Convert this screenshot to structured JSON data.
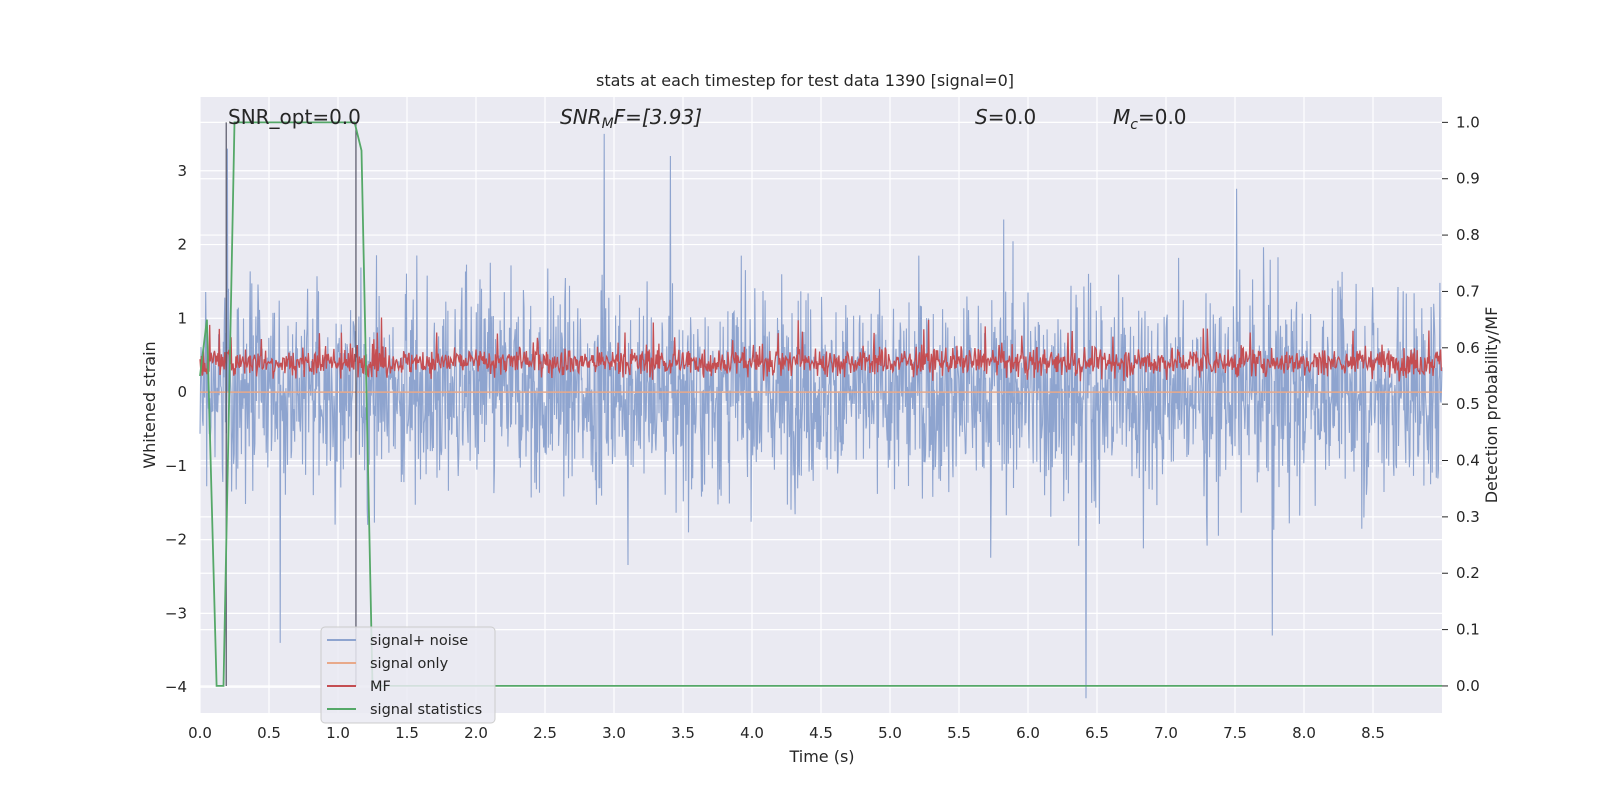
{
  "chart_data": {
    "type": "line",
    "title": "stats at each timestep for test data 1390 [signal=0]",
    "xlabel": "Time (s)",
    "ylabel": "Whitened strain",
    "y2label": "Detection probability/MF",
    "xlim": [
      0.0,
      9.0
    ],
    "ylim": [
      -4.35,
      4.0
    ],
    "y2lim": [
      -0.048,
      1.045
    ],
    "grid": true,
    "legend_placement": "lower-left",
    "x_ticks": [
      "0.0",
      "0.5",
      "1.0",
      "1.5",
      "2.0",
      "2.5",
      "3.0",
      "3.5",
      "4.0",
      "4.5",
      "5.0",
      "5.5",
      "6.0",
      "6.5",
      "7.0",
      "7.5",
      "8.0",
      "8.5"
    ],
    "y_ticks": [
      "3",
      "2",
      "1",
      "0",
      "−1",
      "−2",
      "−3",
      "−4"
    ],
    "y2_ticks": [
      "1.0",
      "0.9",
      "0.8",
      "0.7",
      "0.6",
      "0.5",
      "0.4",
      "0.3",
      "0.2",
      "0.1",
      "0.0"
    ],
    "annotations": {
      "snr_opt": "SNR_opt=0.0",
      "snr_mf_base": "SNR",
      "snr_mf_sub": "M",
      "snr_mf_rest": "F=[3.93]",
      "s_base": "S",
      "s_rest": "=0.0",
      "mc_base": "M",
      "mc_sub": "c",
      "mc_rest": "=0.0"
    },
    "series": [
      {
        "name": "signal+ noise",
        "color": "#8ea4cf",
        "axis": "left",
        "description_level": "whitened strain noise, envelope approx ±1.5 to ±2.0",
        "peaks": [
          [
            0.2,
            3.3
          ],
          [
            2.93,
            3.5
          ],
          [
            6.42,
            -4.15
          ],
          [
            0.58,
            -3.4
          ],
          [
            7.77,
            -3.3
          ]
        ]
      },
      {
        "name": "signal only",
        "color": "#e8a98a",
        "axis": "left",
        "values_x": [
          0.0,
          9.0
        ],
        "values_y": [
          0.0,
          0.0
        ]
      },
      {
        "name": "MF",
        "color": "#c44e52",
        "axis": "right",
        "mean": 0.575,
        "range": [
          0.54,
          0.67
        ]
      },
      {
        "name": "signal statistics",
        "color": "#55a868",
        "axis": "right",
        "x": [
          0.0,
          0.05,
          0.12,
          0.17,
          0.25,
          1.12,
          1.17,
          1.25,
          9.0
        ],
        "y": [
          0.55,
          0.65,
          0.0,
          0.0,
          1.0,
          1.0,
          0.95,
          0.0,
          0.0
        ]
      }
    ],
    "vertical_markers_x": [
      0.19,
      1.13
    ]
  }
}
